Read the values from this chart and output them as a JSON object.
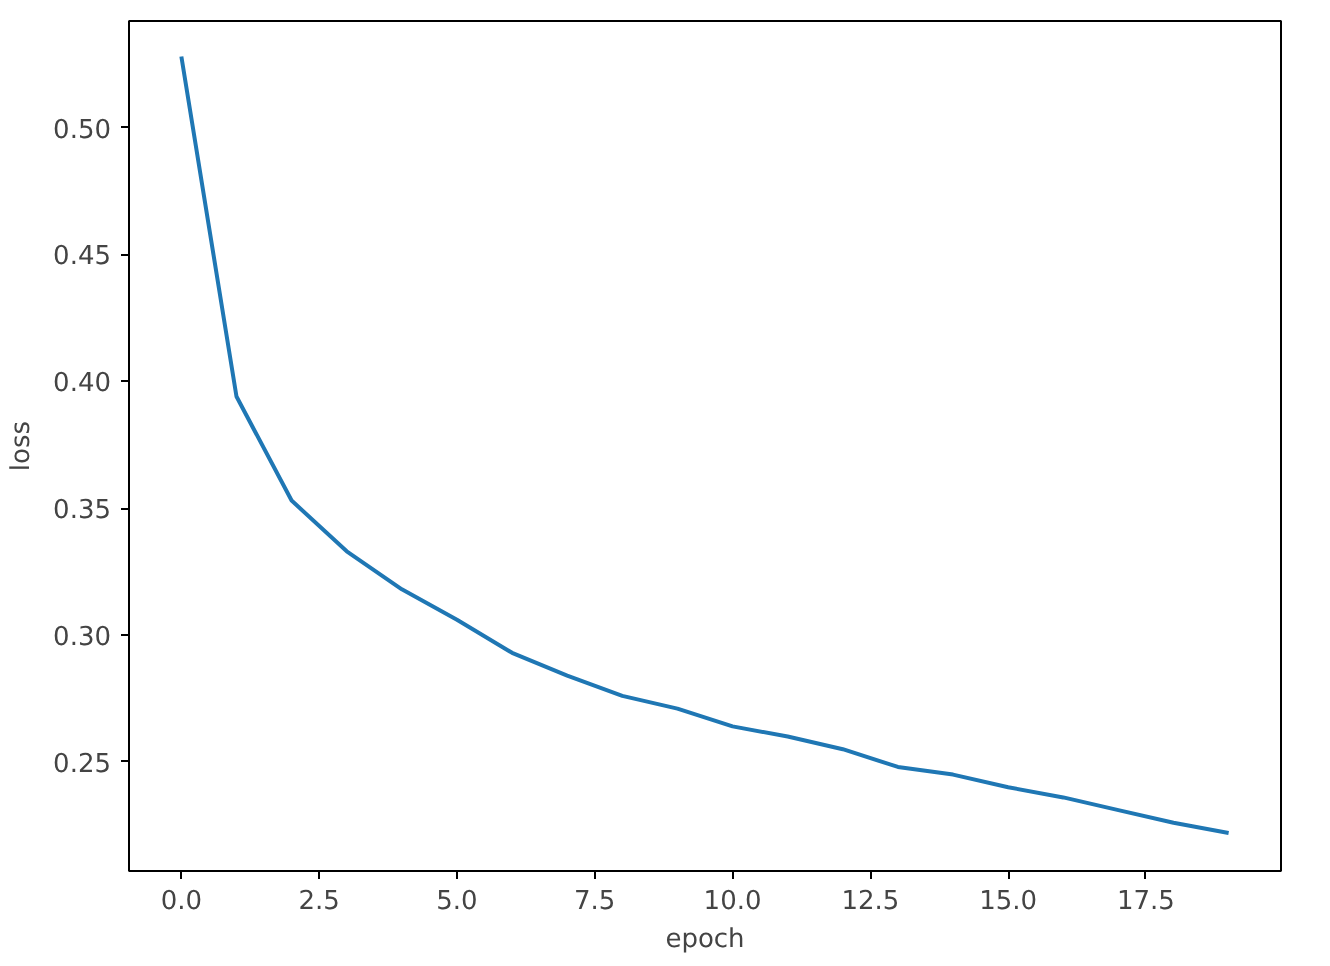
{
  "chart_data": {
    "type": "line",
    "xlabel": "epoch",
    "ylabel": "loss",
    "x": [
      0,
      1,
      2,
      3,
      4,
      5,
      6,
      7,
      8,
      9,
      10,
      11,
      12,
      13,
      14,
      15,
      16,
      17,
      18,
      19
    ],
    "series": [
      {
        "color": "#1f77b4",
        "values": [
          0.528,
          0.394,
          0.353,
          0.333,
          0.318,
          0.306,
          0.293,
          0.284,
          0.276,
          0.271,
          0.264,
          0.26,
          0.255,
          0.248,
          0.245,
          0.24,
          0.236,
          0.231,
          0.226,
          0.222
        ]
      }
    ],
    "xlim": [
      -0.95,
      19.95
    ],
    "ylim": [
      0.207,
      0.542
    ],
    "xticks": [
      {
        "value": 0,
        "label": "0.0"
      },
      {
        "value": 2.5,
        "label": "2.5"
      },
      {
        "value": 5,
        "label": "5.0"
      },
      {
        "value": 7.5,
        "label": "7.5"
      },
      {
        "value": 10,
        "label": "10.0"
      },
      {
        "value": 12.5,
        "label": "12.5"
      },
      {
        "value": 15,
        "label": "15.0"
      },
      {
        "value": 17.5,
        "label": "17.5"
      }
    ],
    "yticks": [
      {
        "value": 0.25,
        "label": "0.25"
      },
      {
        "value": 0.3,
        "label": "0.30"
      },
      {
        "value": 0.35,
        "label": "0.35"
      },
      {
        "value": 0.4,
        "label": "0.40"
      },
      {
        "value": 0.45,
        "label": "0.45"
      },
      {
        "value": 0.5,
        "label": "0.50"
      }
    ],
    "grid": false,
    "marker": "none",
    "line_style": "solid"
  }
}
